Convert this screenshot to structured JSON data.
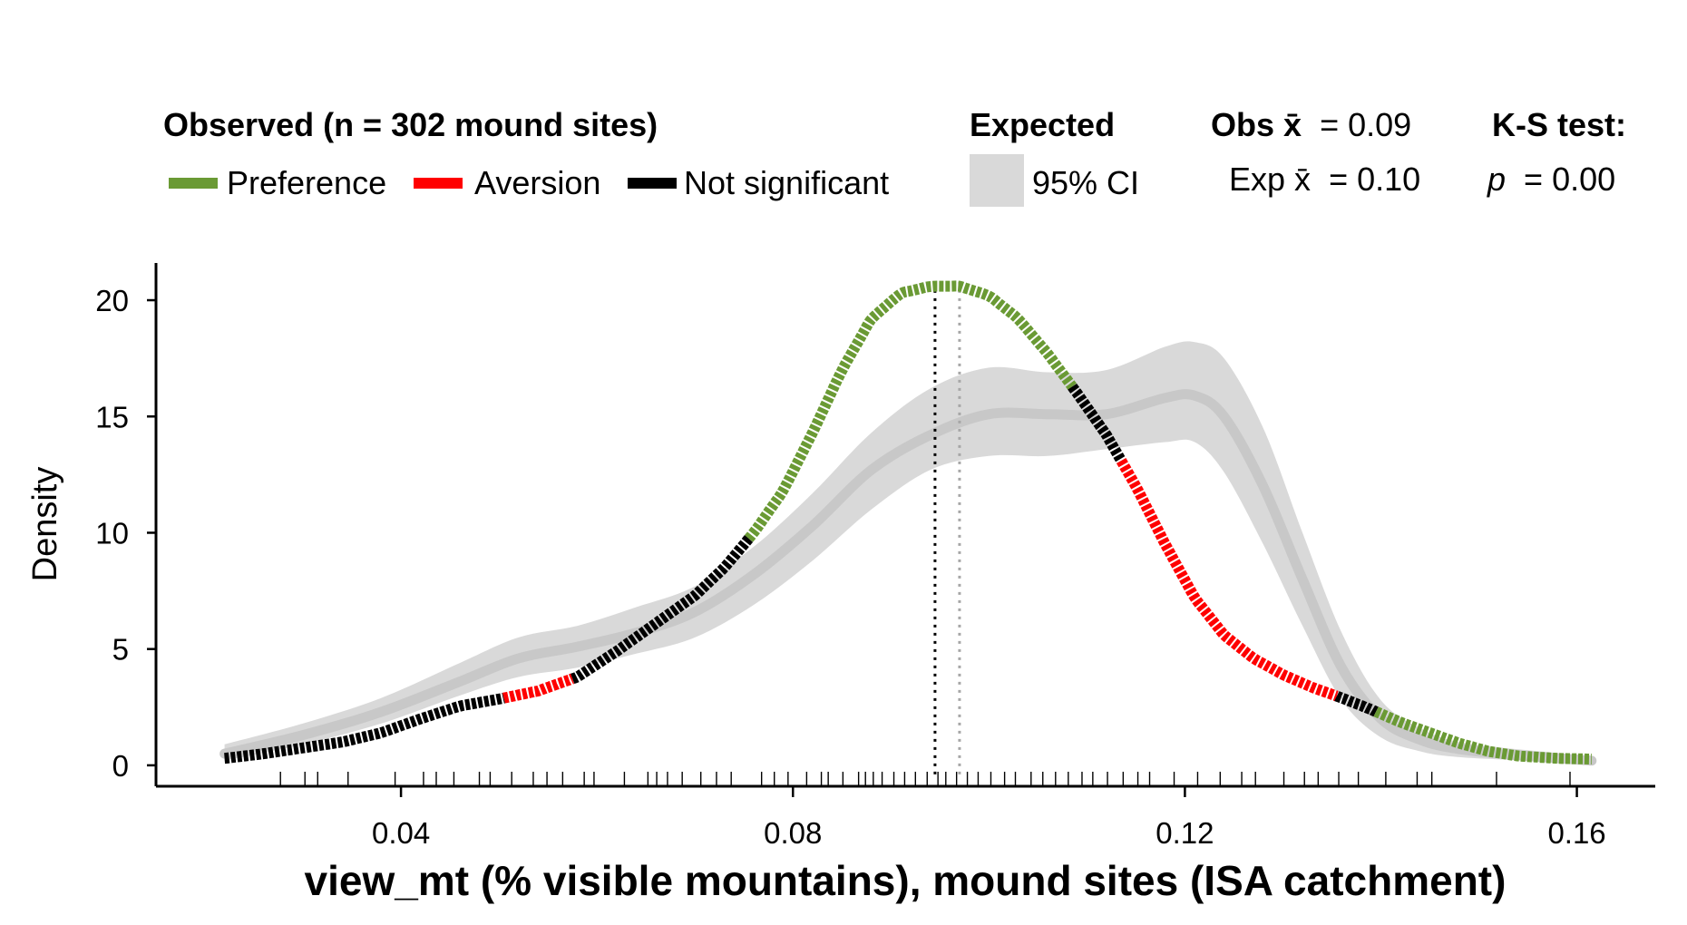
{
  "legend": {
    "observed_title": "Observed (n = 302 mound sites)",
    "preference": "Preference",
    "aversion": "Aversion",
    "not_significant": "Not significant",
    "expected_title": "Expected",
    "ci_label": "95% CI",
    "obs_mean_label": "Obs x̄",
    "obs_mean_value": "= 0.09",
    "exp_mean_label": "Exp x̄",
    "exp_mean_value": "= 0.10",
    "ks_title": "K-S test:",
    "p_symbol": "p",
    "p_value": "= 0.00"
  },
  "colors": {
    "preference": "#6a9a34",
    "aversion": "#ff0000",
    "not_significant": "#000000",
    "ci_fill": "#d9d9d9",
    "expected_line": "#c8c8c8"
  },
  "chart_data": {
    "type": "line",
    "xlabel": "view_mt (% visible mountains), mound sites (ISA catchment)",
    "ylabel": "Density",
    "xlim": [
      0.015,
      0.168
    ],
    "ylim": [
      -0.9,
      21.6
    ],
    "x_ticks": [
      0.04,
      0.08,
      0.12,
      0.16
    ],
    "x_tick_labels": [
      "0.04",
      "0.08",
      "0.12",
      "0.16"
    ],
    "y_ticks": [
      0,
      5,
      10,
      15,
      20
    ],
    "y_tick_labels": [
      "0",
      "5",
      "10",
      "15",
      "20"
    ],
    "observed_mean": 0.0945,
    "expected_mean": 0.097,
    "observed_density": [
      [
        0.022,
        0.3
      ],
      [
        0.026,
        0.5
      ],
      [
        0.03,
        0.75
      ],
      [
        0.034,
        1.0
      ],
      [
        0.038,
        1.4
      ],
      [
        0.042,
        2.0
      ],
      [
        0.046,
        2.55
      ],
      [
        0.05,
        2.85
      ],
      [
        0.054,
        3.2
      ],
      [
        0.058,
        3.8
      ],
      [
        0.062,
        4.9
      ],
      [
        0.066,
        6.1
      ],
      [
        0.07,
        7.3
      ],
      [
        0.073,
        8.5
      ],
      [
        0.076,
        10.0
      ],
      [
        0.079,
        11.8
      ],
      [
        0.082,
        14.3
      ],
      [
        0.085,
        17.0
      ],
      [
        0.088,
        19.2
      ],
      [
        0.091,
        20.3
      ],
      [
        0.094,
        20.6
      ],
      [
        0.097,
        20.6
      ],
      [
        0.1,
        20.2
      ],
      [
        0.103,
        19.2
      ],
      [
        0.106,
        17.7
      ],
      [
        0.109,
        16.0
      ],
      [
        0.112,
        14.2
      ],
      [
        0.115,
        12.0
      ],
      [
        0.118,
        9.5
      ],
      [
        0.121,
        7.2
      ],
      [
        0.124,
        5.6
      ],
      [
        0.127,
        4.6
      ],
      [
        0.13,
        3.9
      ],
      [
        0.133,
        3.35
      ],
      [
        0.136,
        2.9
      ],
      [
        0.139,
        2.4
      ],
      [
        0.142,
        1.85
      ],
      [
        0.145,
        1.4
      ],
      [
        0.148,
        0.95
      ],
      [
        0.151,
        0.6
      ],
      [
        0.154,
        0.4
      ],
      [
        0.158,
        0.3
      ],
      [
        0.1615,
        0.27
      ]
    ],
    "segments": [
      {
        "from": 0.022,
        "to": 0.0505,
        "class": "not_significant"
      },
      {
        "from": 0.0505,
        "to": 0.0575,
        "class": "aversion"
      },
      {
        "from": 0.0575,
        "to": 0.0755,
        "class": "not_significant"
      },
      {
        "from": 0.0755,
        "to": 0.1085,
        "class": "preference"
      },
      {
        "from": 0.1085,
        "to": 0.1135,
        "class": "not_significant"
      },
      {
        "from": 0.1135,
        "to": 0.1355,
        "class": "aversion"
      },
      {
        "from": 0.1355,
        "to": 0.1395,
        "class": "not_significant"
      },
      {
        "from": 0.1395,
        "to": 0.1615,
        "class": "preference"
      }
    ],
    "expected_density": [
      [
        0.022,
        0.5
      ],
      [
        0.03,
        1.3
      ],
      [
        0.038,
        2.3
      ],
      [
        0.046,
        3.6
      ],
      [
        0.052,
        4.6
      ],
      [
        0.058,
        5.1
      ],
      [
        0.064,
        5.7
      ],
      [
        0.07,
        6.6
      ],
      [
        0.076,
        8.2
      ],
      [
        0.082,
        10.3
      ],
      [
        0.088,
        12.7
      ],
      [
        0.094,
        14.2
      ],
      [
        0.1,
        15.1
      ],
      [
        0.106,
        15.1
      ],
      [
        0.112,
        15.1
      ],
      [
        0.118,
        15.8
      ],
      [
        0.121,
        15.9
      ],
      [
        0.124,
        15.0
      ],
      [
        0.128,
        12.0
      ],
      [
        0.132,
        8.0
      ],
      [
        0.136,
        4.2
      ],
      [
        0.14,
        2.0
      ],
      [
        0.144,
        1.1
      ],
      [
        0.148,
        0.7
      ],
      [
        0.155,
        0.4
      ],
      [
        0.1615,
        0.2
      ]
    ],
    "ci_lower": [
      [
        0.022,
        0.2
      ],
      [
        0.03,
        0.9
      ],
      [
        0.038,
        1.8
      ],
      [
        0.046,
        3.0
      ],
      [
        0.052,
        3.8
      ],
      [
        0.058,
        4.2
      ],
      [
        0.064,
        4.8
      ],
      [
        0.07,
        5.5
      ],
      [
        0.076,
        6.9
      ],
      [
        0.082,
        8.8
      ],
      [
        0.088,
        11.0
      ],
      [
        0.094,
        12.7
      ],
      [
        0.1,
        13.3
      ],
      [
        0.106,
        13.3
      ],
      [
        0.112,
        13.6
      ],
      [
        0.118,
        13.9
      ],
      [
        0.121,
        13.9
      ],
      [
        0.124,
        12.6
      ],
      [
        0.128,
        9.5
      ],
      [
        0.132,
        6.0
      ],
      [
        0.136,
        2.8
      ],
      [
        0.14,
        1.2
      ],
      [
        0.144,
        0.6
      ],
      [
        0.148,
        0.35
      ],
      [
        0.155,
        0.2
      ],
      [
        0.1615,
        0.05
      ]
    ],
    "ci_upper": [
      [
        0.022,
        0.9
      ],
      [
        0.03,
        1.8
      ],
      [
        0.038,
        2.9
      ],
      [
        0.046,
        4.4
      ],
      [
        0.052,
        5.5
      ],
      [
        0.058,
        6.0
      ],
      [
        0.064,
        6.8
      ],
      [
        0.07,
        7.7
      ],
      [
        0.076,
        9.4
      ],
      [
        0.082,
        11.7
      ],
      [
        0.088,
        14.3
      ],
      [
        0.094,
        16.2
      ],
      [
        0.1,
        17.1
      ],
      [
        0.106,
        16.9
      ],
      [
        0.112,
        17.0
      ],
      [
        0.118,
        18.0
      ],
      [
        0.121,
        18.2
      ],
      [
        0.124,
        17.5
      ],
      [
        0.128,
        14.5
      ],
      [
        0.132,
        10.0
      ],
      [
        0.136,
        5.7
      ],
      [
        0.14,
        2.8
      ],
      [
        0.144,
        1.6
      ],
      [
        0.148,
        1.0
      ],
      [
        0.155,
        0.65
      ],
      [
        0.1615,
        0.4
      ]
    ],
    "rug": [
      0.0277,
      0.0302,
      0.0315,
      0.0346,
      0.0394,
      0.0423,
      0.0436,
      0.0454,
      0.048,
      0.0491,
      0.0513,
      0.0535,
      0.0549,
      0.0565,
      0.0587,
      0.0597,
      0.0628,
      0.0652,
      0.0661,
      0.0672,
      0.0687,
      0.0706,
      0.0722,
      0.0737,
      0.0768,
      0.0781,
      0.0795,
      0.0814,
      0.0829,
      0.0836,
      0.0851,
      0.0867,
      0.0874,
      0.0882,
      0.0891,
      0.0903,
      0.0914,
      0.0925,
      0.0937,
      0.0948,
      0.0956,
      0.0967,
      0.0978,
      0.0989,
      0.1002,
      0.1016,
      0.1027,
      0.1043,
      0.1055,
      0.1068,
      0.1081,
      0.1095,
      0.1106,
      0.1121,
      0.1137,
      0.1152,
      0.1164,
      0.1189,
      0.1213,
      0.1236,
      0.1258,
      0.1272,
      0.1301,
      0.1322,
      0.1336,
      0.1357,
      0.1377,
      0.1405,
      0.1437,
      0.1452,
      0.1518,
      0.1593
    ]
  }
}
